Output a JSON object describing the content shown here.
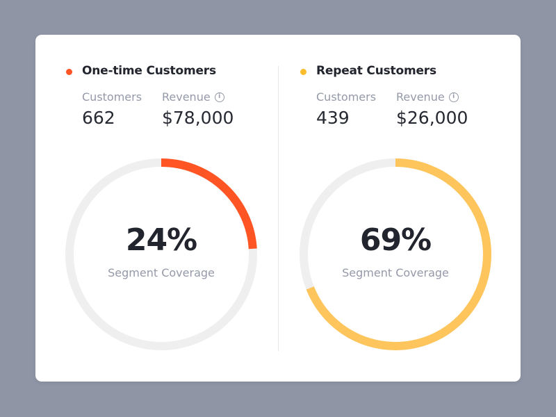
{
  "segments": [
    {
      "title": "One-time Customers",
      "color": "#ff5424",
      "customers_label": "Customers",
      "customers": "662",
      "revenue_label": "Revenue",
      "revenue": "$78,000",
      "info_icon": "info-icon",
      "percent_label": "24%",
      "percent": 24,
      "caption": "Segment Coverage"
    },
    {
      "title": "Repeat Customers",
      "color": "#fbbd2e",
      "ring_color": "#fdc55c",
      "customers_label": "Customers",
      "customers": "439",
      "revenue_label": "Revenue",
      "revenue": "$26,000",
      "info_icon": "info-icon",
      "percent_label": "69%",
      "percent": 69,
      "caption": "Segment Coverage"
    }
  ],
  "colors": {
    "background": "#8f95a5",
    "track": "#efeff0"
  }
}
